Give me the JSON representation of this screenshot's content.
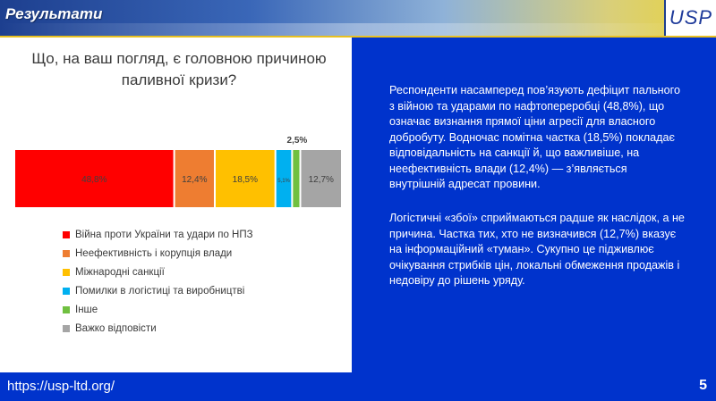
{
  "header": {
    "title": "Результати",
    "logo": "USP"
  },
  "chart_data": {
    "type": "bar",
    "orientation": "horizontal-stacked-100",
    "title": "Що, на ваш погляд, є головною причиною паливної кризи?",
    "series": [
      {
        "name": "Війна проти України та удари по НПЗ",
        "value": 48.8,
        "label": "48,8%",
        "color": "#ff0000"
      },
      {
        "name": "Неефективність і корупція влади",
        "value": 12.4,
        "label": "12,4%",
        "color": "#ee7d31"
      },
      {
        "name": "Міжнародні санкції",
        "value": 18.5,
        "label": "18,5%",
        "color": "#ffc000"
      },
      {
        "name": "Помилки в логістиці та виробництві",
        "value": 5.1,
        "label": "5,1%",
        "color": "#00b0f0"
      },
      {
        "name": "Інше",
        "value": 2.5,
        "label": "2,5%",
        "color": "#70c040"
      },
      {
        "name": "Важко відповісти",
        "value": 12.7,
        "label": "12,7%",
        "color": "#a5a5a5"
      }
    ],
    "legend_position": "bottom"
  },
  "panel": {
    "paragraph1": "Респонденти насамперед пов’язують дефіцит пального з війною та ударами по нафтопереробці (48,8%), що означає визнання прямої ціни агресії для власного добробуту. Водночас помітна частка (18,5%) покладає відповідальність на санкції й, що важливіше, на неефективність влади (12,4%) — з’являється внутрішній адресат провини.",
    "paragraph2": "Логістичні «збої» сприймаються радше як наслідок, а не причина. Частка тих, хто не визначився (12,7%) вказує на інформаційний «туман». Сукупно це підживлює очікування стрибків цін, локальні обмеження продажів і недовіру до рішень уряду."
  },
  "footer": {
    "url": "https://usp-ltd.org/",
    "page": "5"
  }
}
